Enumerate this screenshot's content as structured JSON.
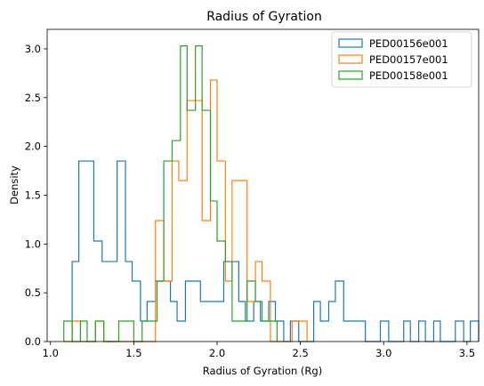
{
  "chart_data": {
    "type": "histogram",
    "title": "Radius of Gyration",
    "xlabel": "Radius of Gyration (Rg)",
    "ylabel": "Density",
    "xlim": [
      0.98,
      3.57
    ],
    "ylim": [
      0,
      3.2
    ],
    "xticks": [
      "1.0",
      "1.5",
      "2.0",
      "2.5",
      "3.0",
      "3.5"
    ],
    "yticks": [
      "0.0",
      "0.5",
      "1.0",
      "1.5",
      "2.0",
      "2.5",
      "3.0"
    ],
    "legend_position": "top-right",
    "grid": false,
    "series": [
      {
        "name": "PED00156e001",
        "color": "#1f77b4",
        "bins": [
          [
            1.13,
            1.17,
            0.82
          ],
          [
            1.17,
            1.26,
            1.85
          ],
          [
            1.26,
            1.31,
            1.03
          ],
          [
            1.31,
            1.4,
            0.82
          ],
          [
            1.4,
            1.45,
            1.85
          ],
          [
            1.45,
            1.49,
            0.82
          ],
          [
            1.49,
            1.54,
            0.62
          ],
          [
            1.54,
            1.58,
            0.21
          ],
          [
            1.58,
            1.63,
            0.41
          ],
          [
            1.63,
            1.72,
            0.62
          ],
          [
            1.72,
            1.76,
            0.41
          ],
          [
            1.76,
            1.81,
            0.21
          ],
          [
            1.81,
            1.9,
            0.62
          ],
          [
            1.9,
            1.99,
            0.41
          ],
          [
            1.99,
            2.04,
            0.41
          ],
          [
            2.04,
            2.13,
            0.82
          ],
          [
            2.13,
            2.17,
            0.41
          ],
          [
            2.17,
            2.22,
            0.21
          ],
          [
            2.22,
            2.26,
            0.41
          ],
          [
            2.26,
            2.31,
            0.21
          ],
          [
            2.31,
            2.35,
            0.41
          ],
          [
            2.35,
            2.4,
            0.21
          ],
          [
            2.4,
            2.44,
            0.0
          ],
          [
            2.44,
            2.49,
            0.21
          ],
          [
            2.49,
            2.58,
            0.0
          ],
          [
            2.58,
            2.62,
            0.41
          ],
          [
            2.62,
            2.67,
            0.21
          ],
          [
            2.67,
            2.71,
            0.41
          ],
          [
            2.71,
            2.76,
            0.62
          ],
          [
            2.76,
            2.8,
            0.21
          ],
          [
            2.8,
            2.89,
            0.21
          ],
          [
            2.89,
            2.98,
            0.0
          ],
          [
            2.98,
            3.03,
            0.21
          ],
          [
            3.03,
            3.12,
            0.0
          ],
          [
            3.12,
            3.16,
            0.21
          ],
          [
            3.16,
            3.21,
            0.0
          ],
          [
            3.21,
            3.25,
            0.21
          ],
          [
            3.25,
            3.3,
            0.0
          ],
          [
            3.3,
            3.34,
            0.21
          ],
          [
            3.34,
            3.43,
            0.0
          ],
          [
            3.43,
            3.48,
            0.21
          ],
          [
            3.48,
            3.52,
            0.0
          ],
          [
            3.52,
            3.57,
            0.21
          ]
        ]
      },
      {
        "name": "PED00157e001",
        "color": "#ff7f0e",
        "bins": [
          [
            1.08,
            1.13,
            0.0
          ],
          [
            1.13,
            1.18,
            0.21
          ],
          [
            1.18,
            1.27,
            0.0
          ],
          [
            1.27,
            1.32,
            0.21
          ],
          [
            1.32,
            1.63,
            0.0
          ],
          [
            1.63,
            1.68,
            1.24
          ],
          [
            1.68,
            1.73,
            0.62
          ],
          [
            1.73,
            1.77,
            1.85
          ],
          [
            1.77,
            1.82,
            1.65
          ],
          [
            1.82,
            1.87,
            2.47
          ],
          [
            1.87,
            1.91,
            2.47
          ],
          [
            1.91,
            1.96,
            1.24
          ],
          [
            1.96,
            2.0,
            2.68
          ],
          [
            2.0,
            2.05,
            1.85
          ],
          [
            2.05,
            2.09,
            0.62
          ],
          [
            2.09,
            2.18,
            1.65
          ],
          [
            2.18,
            2.23,
            0.41
          ],
          [
            2.23,
            2.27,
            0.82
          ],
          [
            2.27,
            2.32,
            0.62
          ],
          [
            2.32,
            2.45,
            0.0
          ],
          [
            2.45,
            2.5,
            0.21
          ],
          [
            2.5,
            2.54,
            0.21
          ]
        ]
      },
      {
        "name": "PED00158e001",
        "color": "#2ca02c",
        "bins": [
          [
            1.08,
            1.13,
            0.21
          ],
          [
            1.13,
            1.18,
            0.0
          ],
          [
            1.18,
            1.22,
            0.21
          ],
          [
            1.22,
            1.27,
            0.0
          ],
          [
            1.27,
            1.32,
            0.21
          ],
          [
            1.32,
            1.41,
            0.0
          ],
          [
            1.41,
            1.5,
            0.21
          ],
          [
            1.5,
            1.55,
            0.0
          ],
          [
            1.55,
            1.64,
            0.21
          ],
          [
            1.64,
            1.68,
            0.62
          ],
          [
            1.68,
            1.73,
            1.85
          ],
          [
            1.73,
            1.78,
            2.06
          ],
          [
            1.78,
            1.82,
            3.03
          ],
          [
            1.82,
            1.87,
            2.37
          ],
          [
            1.87,
            1.91,
            3.03
          ],
          [
            1.91,
            1.96,
            2.37
          ],
          [
            1.96,
            2.0,
            1.44
          ],
          [
            2.0,
            2.05,
            1.03
          ],
          [
            2.05,
            2.09,
            0.82
          ],
          [
            2.09,
            2.14,
            0.21
          ],
          [
            2.14,
            2.18,
            0.21
          ],
          [
            2.18,
            2.23,
            0.62
          ],
          [
            2.23,
            2.27,
            0.41
          ],
          [
            2.27,
            2.32,
            0.21
          ],
          [
            2.32,
            2.36,
            0.21
          ]
        ]
      }
    ]
  }
}
